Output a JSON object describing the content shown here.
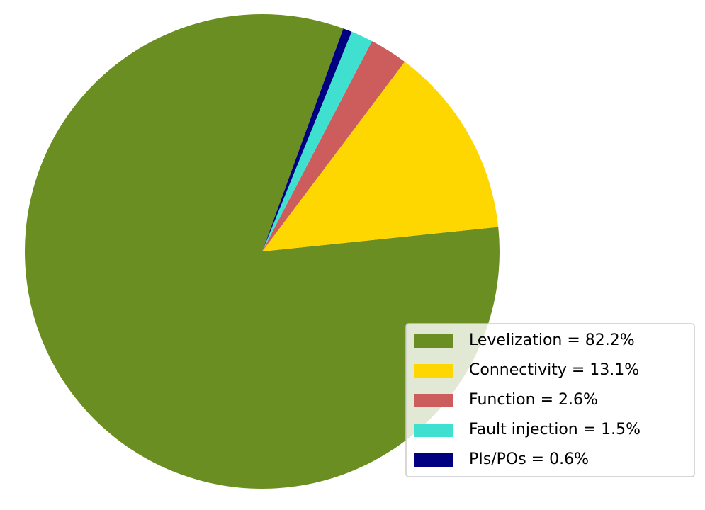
{
  "chart_data": {
    "type": "pie",
    "categories": [
      "Levelization = 82.2%",
      "Connectivity = 13.1%",
      "Function = 2.6%",
      "Fault injection = 1.5%",
      "PIs/POs = 0.6%"
    ],
    "values": [
      82.2,
      13.1,
      2.6,
      1.5,
      0.6
    ],
    "colors": [
      "#6b8e23",
      "#ffd700",
      "#cd5c5c",
      "#40e0d0",
      "#000080"
    ],
    "legend": "lower right"
  }
}
